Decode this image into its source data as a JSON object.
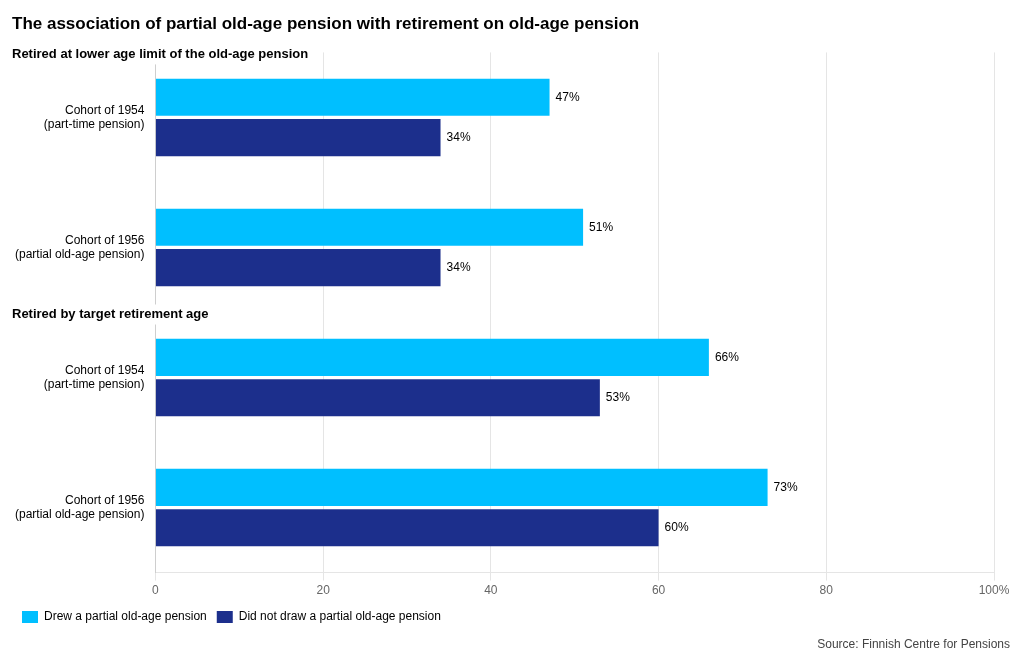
{
  "chart_data": {
    "type": "bar",
    "orientation": "horizontal",
    "title": "The association of partial old-age pension with retirement on old-age pension",
    "categories": [
      "Cohort of 1954\n(part-time pension)",
      "Cohort of 1956\n(partial old-age pension)",
      "Cohort of 1954\n(part-time pension)",
      "Cohort of 1956\n(partial old-age pension)"
    ],
    "series": [
      {
        "name": "Drew a partial old-age pension",
        "color": "#00BFFF",
        "values": [
          47,
          51,
          66,
          73
        ],
        "value_labels": [
          "47%",
          "51%",
          "66%",
          "73%"
        ]
      },
      {
        "name": "Did not draw a partial old-age pension",
        "color": "#1C2F8C",
        "values": [
          34,
          34,
          53,
          60
        ],
        "value_labels": [
          "34%",
          "34%",
          "53%",
          "60%"
        ]
      }
    ],
    "annotations": [
      "Retired at lower age limit of the old-age pension",
      "Retired by target retirement age",
      "Source: Finnish Centre for Pensions"
    ],
    "xlim": [
      0,
      100
    ],
    "xticks": [
      0,
      20,
      40,
      60,
      80,
      {
        "value": 100,
        "label": "100%"
      }
    ],
    "grid": true,
    "legend": "bottom",
    "data_labels": true
  }
}
